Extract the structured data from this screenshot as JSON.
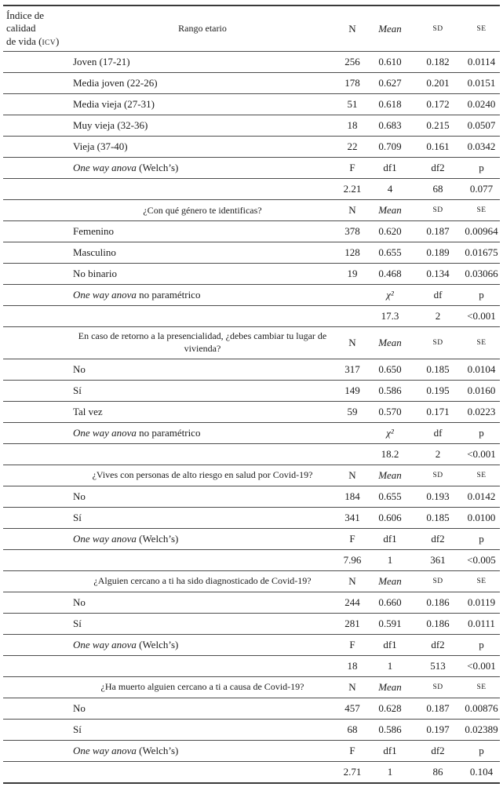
{
  "table": {
    "main_header": {
      "col1_line1": "Índice de calidad",
      "col1_line2_pre": "de vida (",
      "col1_acronym": "ICV",
      "col1_line2_post": ")",
      "col2": "Rango etario"
    },
    "col_labels": [
      "N",
      "Mean",
      "SD",
      "SE"
    ],
    "sections": [
      {
        "question": null,
        "rows": [
          {
            "label": "Joven (17-21)",
            "values": [
              "256",
              "0.610",
              "0.182",
              "0.0114"
            ]
          },
          {
            "label": "Media joven (22-26)",
            "values": [
              "178",
              "0.627",
              "0.201",
              "0.0151"
            ]
          },
          {
            "label": "Media vieja (27-31)",
            "values": [
              "51",
              "0.618",
              "0.172",
              "0.0240"
            ]
          },
          {
            "label": "Muy vieja (32-36)",
            "values": [
              "18",
              "0.683",
              "0.215",
              "0.0507"
            ]
          },
          {
            "label": "Vieja (37-40)",
            "values": [
              "22",
              "0.709",
              "0.161",
              "0.0342"
            ]
          }
        ],
        "anova_label": {
          "italic": "One way anova",
          "regular": "(Welch’s)"
        },
        "anova_headers": [
          "F",
          "df1",
          "df2",
          "p"
        ],
        "anova_values": [
          "2.21",
          "4",
          "68",
          "0.077"
        ]
      },
      {
        "question": "¿Con qué género te identificas?",
        "rows": [
          {
            "label": "Femenino",
            "values": [
              "378",
              "0.620",
              "0.187",
              "0.00964"
            ]
          },
          {
            "label": "Masculino",
            "values": [
              "128",
              "0.655",
              "0.189",
              "0.01675"
            ]
          },
          {
            "label": "No binario",
            "values": [
              "19",
              "0.468",
              "0.134",
              "0.03066"
            ]
          }
        ],
        "anova_label": {
          "italic": "One way anova",
          "regular": "no paramétrico"
        },
        "anova_headers": [
          "",
          "χ²",
          "df",
          "p"
        ],
        "anova_values": [
          "",
          "17.3",
          "2",
          "<0.001"
        ]
      },
      {
        "question": "En caso de retorno a la presencialidad, ¿debes cambiar tu lugar de vivienda?",
        "rows": [
          {
            "label": "No",
            "values": [
              "317",
              "0.650",
              "0.185",
              "0.0104"
            ]
          },
          {
            "label": "Sí",
            "values": [
              "149",
              "0.586",
              "0.195",
              "0.0160"
            ]
          },
          {
            "label": "Tal vez",
            "values": [
              "59",
              "0.570",
              "0.171",
              "0.0223"
            ]
          }
        ],
        "anova_label": {
          "italic": "One way anova",
          "regular": "no paramétrico"
        },
        "anova_headers": [
          "",
          "χ²",
          "df",
          "p"
        ],
        "anova_values": [
          "",
          "18.2",
          "2",
          "<0.001"
        ]
      },
      {
        "question": "¿Vives con personas de alto riesgo en salud por Covid-19?",
        "rows": [
          {
            "label": "No",
            "values": [
              "184",
              "0.655",
              "0.193",
              "0.0142"
            ]
          },
          {
            "label": "Sí",
            "values": [
              "341",
              "0.606",
              "0.185",
              "0.0100"
            ]
          }
        ],
        "anova_label": {
          "italic": "One way anova",
          "regular": "(Welch’s)"
        },
        "anova_headers": [
          "F",
          "df1",
          "df2",
          "p"
        ],
        "anova_values": [
          "7.96",
          "1",
          "361",
          "<0.005"
        ]
      },
      {
        "question": "¿Alguien cercano a ti ha sido diagnosticado de Covid-19?",
        "rows": [
          {
            "label": "No",
            "values": [
              "244",
              "0.660",
              "0.186",
              "0.0119"
            ]
          },
          {
            "label": "Sí",
            "values": [
              "281",
              "0.591",
              "0.186",
              "0.0111"
            ]
          }
        ],
        "anova_label": {
          "italic": "One way anova",
          "regular": "(Welch’s)"
        },
        "anova_headers": [
          "F",
          "df1",
          "df2",
          "p"
        ],
        "anova_values": [
          "18",
          "1",
          "513",
          "<0.001"
        ]
      },
      {
        "question": "¿Ha muerto alguien cercano a ti a causa de Covid-19?",
        "rows": [
          {
            "label": "No",
            "values": [
              "457",
              "0.628",
              "0.187",
              "0.00876"
            ]
          },
          {
            "label": "Sí",
            "values": [
              "68",
              "0.586",
              "0.197",
              "0.02389"
            ]
          }
        ],
        "anova_label": {
          "italic": "One way anova",
          "regular": "(Welch’s)"
        },
        "anova_headers": [
          "F",
          "df1",
          "df2",
          "p"
        ],
        "anova_values": [
          "2.71",
          "1",
          "86",
          "0.104"
        ]
      }
    ]
  }
}
